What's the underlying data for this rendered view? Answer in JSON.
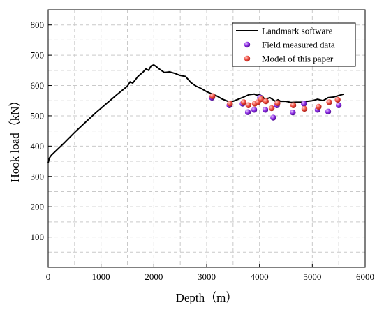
{
  "chart_data": {
    "type": "line",
    "title": "",
    "xlabel": "Depth（m）",
    "ylabel": "Hook load（kN）",
    "xlim": [
      0,
      6000
    ],
    "ylim": [
      0,
      850
    ],
    "xticks": [
      0,
      1000,
      2000,
      3000,
      4000,
      5000,
      6000
    ],
    "yticks": [
      100,
      200,
      300,
      400,
      500,
      600,
      700,
      800
    ],
    "grid": true,
    "grid_style": "dashed",
    "legend_position": "top-right",
    "series": [
      {
        "name": "Landmark software",
        "kind": "line",
        "color": "#000000",
        "x": [
          0,
          20,
          60,
          150,
          300,
          500,
          700,
          900,
          1100,
          1300,
          1500,
          1550,
          1600,
          1700,
          1800,
          1850,
          1900,
          1950,
          2000,
          2050,
          2100,
          2200,
          2300,
          2400,
          2500,
          2600,
          2700,
          2800,
          2900,
          3000,
          3100,
          3200,
          3300,
          3400,
          3500,
          3600,
          3700,
          3800,
          3900,
          3950,
          4000,
          4050,
          4100,
          4200,
          4300,
          4350,
          4400,
          4500,
          4600,
          4700,
          4800,
          4900,
          5000,
          5100,
          5200,
          5300,
          5400,
          5500,
          5600
        ],
        "values": [
          345,
          360,
          370,
          385,
          410,
          445,
          478,
          510,
          540,
          570,
          598,
          612,
          608,
          630,
          645,
          655,
          650,
          665,
          668,
          662,
          655,
          643,
          645,
          640,
          633,
          630,
          610,
          598,
          590,
          580,
          572,
          565,
          555,
          548,
          548,
          555,
          562,
          570,
          572,
          568,
          570,
          565,
          555,
          560,
          548,
          553,
          548,
          548,
          544,
          545,
          545,
          548,
          550,
          555,
          550,
          560,
          562,
          567,
          572
        ]
      },
      {
        "name": "Field measured data",
        "kind": "scatter",
        "color": "#7a1fd6",
        "x": [
          3100,
          3430,
          3680,
          3780,
          3900,
          4010,
          4110,
          4260,
          4330,
          4630,
          4840,
          5100,
          5300,
          5500
        ],
        "values": [
          560,
          535,
          540,
          512,
          520,
          560,
          520,
          494,
          535,
          511,
          540,
          520,
          514,
          535
        ]
      },
      {
        "name": "Model of this paper",
        "kind": "scatter",
        "color": "#ef4a3e",
        "x": [
          3110,
          3440,
          3700,
          3790,
          3910,
          3970,
          4030,
          4120,
          4230,
          4340,
          4640,
          4850,
          5120,
          5320,
          5480
        ],
        "values": [
          565,
          540,
          545,
          535,
          540,
          545,
          555,
          548,
          525,
          542,
          535,
          523,
          530,
          545,
          553
        ]
      }
    ]
  }
}
